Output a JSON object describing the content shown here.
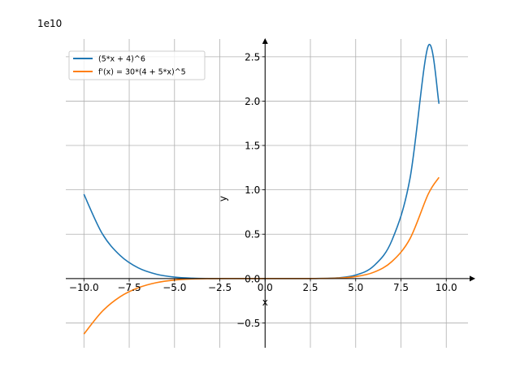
{
  "chart_data": {
    "type": "line",
    "xlabel": "x",
    "ylabel": "y",
    "y_offset_label": "1e10",
    "xlim": [
      -11,
      11.2
    ],
    "ylim": [
      -0.78,
      2.7
    ],
    "y_scale_factor": 10000000000,
    "grid": true,
    "legend_position": "top-left",
    "x_ticks": [
      -10,
      -7.5,
      -5,
      -2.5,
      0,
      2.5,
      5,
      7.5,
      10
    ],
    "x_tick_labels": [
      "−10.0",
      "−7.5",
      "−5.0",
      "−2.5",
      "0.0",
      "2.5",
      "5.0",
      "7.5",
      "10.0"
    ],
    "y_ticks": [
      -0.5,
      0,
      0.5,
      1,
      1.5,
      2,
      2.5
    ],
    "y_tick_labels": [
      "−0.5",
      "0.0",
      "0.5",
      "1.0",
      "1.5",
      "2.0",
      "2.5"
    ],
    "x": [
      -10,
      -9,
      -8,
      -7,
      -6,
      -5,
      -4,
      -3,
      -2,
      -1,
      0,
      1,
      2,
      3,
      4,
      5,
      6,
      7,
      8,
      9,
      9.6
    ],
    "series": [
      {
        "name": "(5*x + 4)^6",
        "color": "#1f77b4",
        "values": [
          0.95,
          0.51,
          0.26,
          0.12,
          0.049,
          0.016,
          0.0037,
          0.0005,
          2e-05,
          0.0,
          0.0,
          0.0,
          4e-05,
          0.0009,
          0.0078,
          0.039,
          0.143,
          0.43,
          1.13,
          2.62,
          1.97
        ]
      },
      {
        "name": "f'(x) = 30*(4 + 5*x)^5",
        "color": "#ff7f0e",
        "values": [
          -0.626,
          -0.372,
          -0.205,
          -0.104,
          -0.046,
          -0.017,
          -0.0047,
          -0.0008,
          -5e-05,
          0.0,
          0.0,
          0.0,
          6e-05,
          0.0008,
          0.0052,
          0.022,
          0.071,
          0.192,
          0.45,
          0.95,
          1.14
        ]
      }
    ]
  }
}
